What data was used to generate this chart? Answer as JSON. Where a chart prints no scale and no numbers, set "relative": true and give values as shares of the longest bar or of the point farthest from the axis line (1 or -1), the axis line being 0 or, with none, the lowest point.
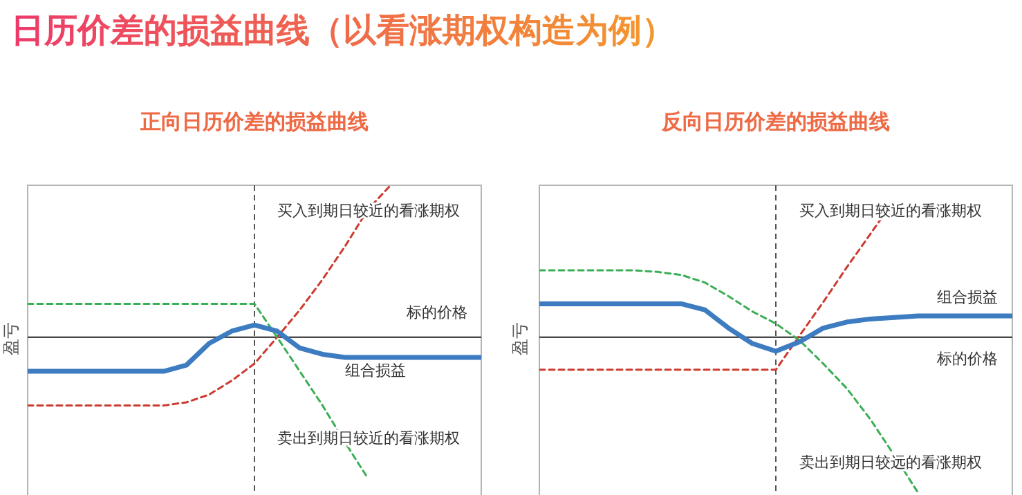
{
  "chart_data": [
    {
      "type": "line",
      "title": "日历价差的损益曲线（以看涨期权构造为例）",
      "subtitle": "正向日历价差的损益曲线",
      "ylabel": "盈亏",
      "relative": true,
      "grid": false,
      "marker": "none",
      "categories": [
        null,
        null,
        null,
        null,
        null,
        null,
        null,
        null,
        null,
        null,
        null,
        null,
        null,
        null,
        null,
        null,
        null,
        null,
        null,
        null,
        null
      ],
      "ref_lines": [
        {
          "axis": "y",
          "value": 0,
          "label": "标的价格",
          "color": "#222222",
          "line_style": "solid"
        }
      ],
      "series": [
        {
          "name": "买入到期日较近的看涨期权",
          "color": "#cc3b30",
          "line_style": "dashed",
          "values": [
            -0.44,
            -0.44,
            -0.44,
            -0.44,
            -0.44,
            -0.44,
            -0.44,
            -0.42,
            -0.37,
            -0.28,
            -0.17,
            0,
            0.18,
            0.38,
            0.6,
            0.84,
            1,
            null,
            null,
            null,
            null
          ]
        },
        {
          "name": "卖出到期日较近的看涨期权",
          "color": "#3aae55",
          "line_style": "dashed",
          "values": [
            0.22,
            0.22,
            0.22,
            0.22,
            0.22,
            0.22,
            0.22,
            0.22,
            0.22,
            0.22,
            0.22,
            0,
            -0.22,
            -0.44,
            -0.68,
            -0.91,
            null,
            null,
            null,
            null,
            null
          ]
        },
        {
          "name": "组合损益",
          "color": "#3d7cc0",
          "line_style": "solid",
          "values": [
            -0.22,
            -0.22,
            -0.22,
            -0.22,
            -0.22,
            -0.22,
            -0.22,
            -0.18,
            -0.04,
            0.04,
            0.08,
            0.04,
            -0.07,
            -0.11,
            -0.13,
            -0.13,
            -0.13,
            -0.13,
            -0.13,
            -0.13,
            -0.13
          ]
        }
      ]
    },
    {
      "type": "line",
      "subtitle": "反向日历价差的损益曲线",
      "ylabel": "盈亏",
      "relative": true,
      "grid": false,
      "marker": "none",
      "categories": [
        null,
        null,
        null,
        null,
        null,
        null,
        null,
        null,
        null,
        null,
        null,
        null,
        null,
        null,
        null,
        null,
        null,
        null,
        null,
        null,
        null
      ],
      "ref_lines": [
        {
          "axis": "y",
          "value": 0,
          "label": "标的价格",
          "color": "#222222",
          "line_style": "solid"
        }
      ],
      "series": [
        {
          "name": "买入到期日较近的看涨期权",
          "color": "#cc3b30",
          "line_style": "dashed",
          "values": [
            -0.21,
            -0.21,
            -0.21,
            -0.21,
            -0.21,
            -0.21,
            -0.21,
            -0.21,
            -0.21,
            -0.21,
            -0.21,
            0.01,
            0.23,
            0.46,
            0.68,
            0.9,
            null,
            null,
            null,
            null,
            null
          ]
        },
        {
          "name": "卖出到期日较远的看涨期权",
          "color": "#3aae55",
          "line_style": "dashed",
          "values": [
            0.44,
            0.44,
            0.44,
            0.44,
            0.44,
            0.43,
            0.41,
            0.36,
            0.27,
            0.17,
            0.09,
            -0.02,
            -0.17,
            -0.33,
            -0.53,
            -0.76,
            -1,
            null,
            null,
            null,
            null
          ]
        },
        {
          "name": "组合损益",
          "color": "#3d7cc0",
          "line_style": "solid",
          "values": [
            0.22,
            0.22,
            0.22,
            0.22,
            0.22,
            0.22,
            0.22,
            0.18,
            0.06,
            -0.04,
            -0.09,
            -0.03,
            0.06,
            0.1,
            0.12,
            0.13,
            0.14,
            0.14,
            0.14,
            0.14,
            0.14
          ]
        }
      ]
    }
  ]
}
